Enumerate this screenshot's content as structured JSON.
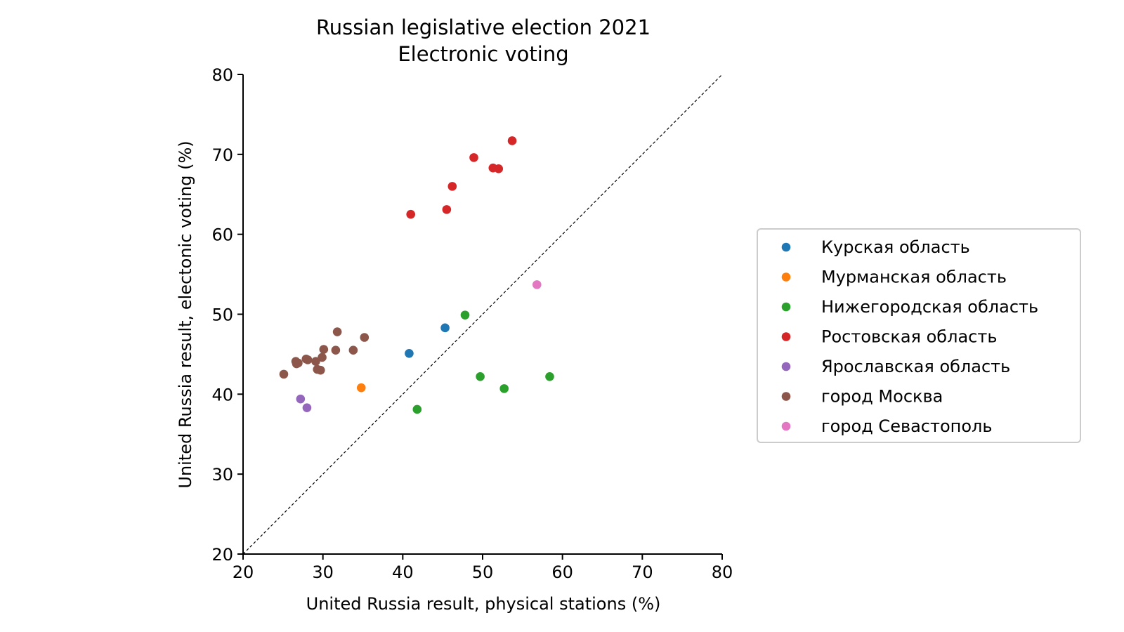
{
  "chart_data": {
    "type": "scatter",
    "title": "Russian legislative election 2021",
    "subtitle": "Electronic voting",
    "xlabel": "United Russia result, physical stations (%)",
    "ylabel": "United Russia result, electonic voting (%)",
    "xlim": [
      20,
      80
    ],
    "ylim": [
      20,
      80
    ],
    "xticks": [
      "20",
      "30",
      "40",
      "50",
      "60",
      "70",
      "80"
    ],
    "yticks": [
      "20",
      "30",
      "40",
      "50",
      "60",
      "70",
      "80"
    ],
    "grid": false,
    "legend_position": "right, outside plot",
    "reference_line": "y = x (dotted)",
    "series": [
      {
        "name": "Курская область",
        "color": "#1f77b4",
        "points": [
          [
            40.8,
            45.1
          ],
          [
            45.3,
            48.3
          ]
        ]
      },
      {
        "name": "Мурманская область",
        "color": "#ff7f0e",
        "points": [
          [
            34.8,
            40.8
          ]
        ]
      },
      {
        "name": "Нижегородская область",
        "color": "#2ca02c",
        "points": [
          [
            47.8,
            49.9
          ],
          [
            49.7,
            42.2
          ],
          [
            52.7,
            40.7
          ],
          [
            41.8,
            38.1
          ],
          [
            58.4,
            42.2
          ]
        ]
      },
      {
        "name": "Ростовская область",
        "color": "#d62728",
        "points": [
          [
            53.7,
            71.7
          ],
          [
            48.9,
            69.6
          ],
          [
            51.3,
            68.3
          ],
          [
            52.0,
            68.2
          ],
          [
            46.2,
            66.0
          ],
          [
            45.5,
            63.1
          ],
          [
            41.0,
            62.5
          ]
        ]
      },
      {
        "name": "Ярославская область",
        "color": "#9467bd",
        "points": [
          [
            27.2,
            39.4
          ],
          [
            28.0,
            38.3
          ]
        ]
      },
      {
        "name": "город Москва",
        "color": "#8c564b",
        "points": [
          [
            31.8,
            47.8
          ],
          [
            35.2,
            47.1
          ],
          [
            30.1,
            45.6
          ],
          [
            31.6,
            45.5
          ],
          [
            33.8,
            45.5
          ],
          [
            29.9,
            44.6
          ],
          [
            27.9,
            44.4
          ],
          [
            28.1,
            44.3
          ],
          [
            29.1,
            44.1
          ],
          [
            26.6,
            44.1
          ],
          [
            26.9,
            43.9
          ],
          [
            26.7,
            43.8
          ],
          [
            29.3,
            43.1
          ],
          [
            29.7,
            43.0
          ],
          [
            25.1,
            42.5
          ]
        ]
      },
      {
        "name": "город Севастополь",
        "color": "#e377c2",
        "points": [
          [
            56.8,
            53.7
          ]
        ]
      }
    ]
  }
}
